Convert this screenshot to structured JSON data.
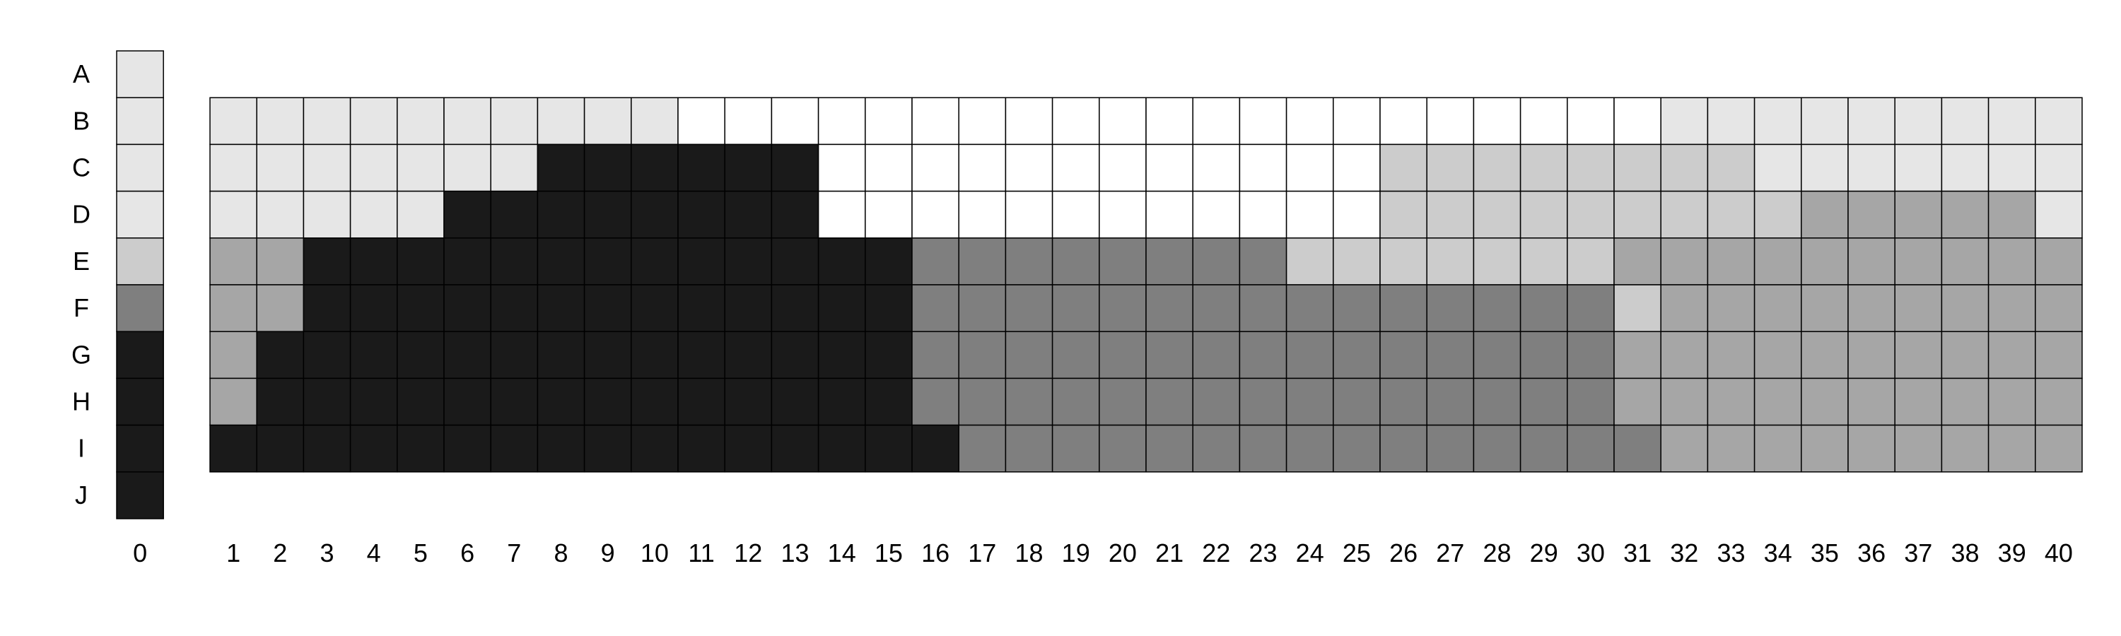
{
  "row_labels": [
    "A",
    "B",
    "C",
    "D",
    "E",
    "F",
    "G",
    "H",
    "I",
    "J"
  ],
  "col_labels": [
    "0",
    "1",
    "2",
    "3",
    "4",
    "5",
    "6",
    "7",
    "8",
    "9",
    "10",
    "11",
    "12",
    "13",
    "14",
    "15",
    "16",
    "17",
    "18",
    "19",
    "20",
    "21",
    "22",
    "23",
    "24",
    "25",
    "26",
    "27",
    "28",
    "29",
    "30",
    "31",
    "32",
    "33",
    "34",
    "35",
    "36",
    "37",
    "38",
    "39",
    "40"
  ],
  "palette": {
    "0": "#ffffff",
    "1": "#e6e6e6",
    "2": "#cccccc",
    "3": "#bdbdbd",
    "4": "#a6a6a6",
    "5": "#7f7f7f",
    "6": "#1a1a1a"
  },
  "reference_column": [
    "1",
    "1",
    "1",
    "1",
    "2",
    "5",
    "6",
    "6",
    "6",
    "6"
  ],
  "grid_rows": [
    "B",
    "C",
    "D",
    "E",
    "F",
    "G",
    "H",
    "I"
  ],
  "grid": [
    "1111111111000000000000000000000111111111",
    "1111111666666000000000000222222221111111",
    "1111166666666000000000000222222222444441",
    "4466666666666665555555522222224444444444",
    "4466666666666665555555555555552444444444",
    "4666666666666665555555555555554444444444",
    "4666666666666665555555555555554444444444",
    "6666666666666666555555555555555444444444"
  ]
}
